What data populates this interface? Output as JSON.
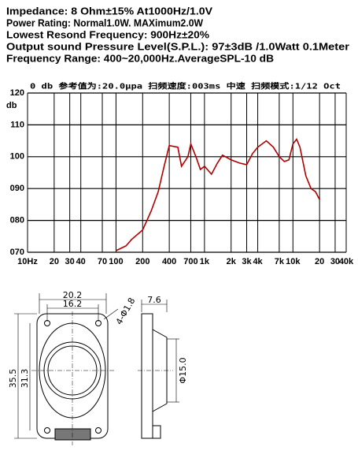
{
  "specs": [
    "Impedance: 8 Ohm±15%  At1000Hz/1.0V",
    "Power Rating: Normal1.0W. MAXimum2.0W",
    "Lowest Resond Frequency: 900Hz±20%",
    "Output sound Pressure Level(S.P.L.): 97±3dB /1.0Watt 0.1Meter",
    "Frequency Range: 400~20,000Hz.AverageSPL-10 dB"
  ],
  "chart_data": {
    "type": "line",
    "title": "0 db  参考值为:20.0μpa  扫频速度:003ms  中速  扫频模式:1/12  Oct",
    "y_label": "db",
    "xscale": "log",
    "grid": true,
    "color": "#b00000",
    "xlim": [
      10,
      40000
    ],
    "ylim": [
      70,
      120
    ],
    "xticks": [
      {
        "value": 10,
        "label": "10Hz"
      },
      20,
      30,
      40,
      70,
      100,
      200,
      400,
      700,
      {
        "value": 1000,
        "label": "1k"
      },
      {
        "value": 2000,
        "label": "2k"
      },
      {
        "value": 3000,
        "label": "3k"
      },
      {
        "value": 4000,
        "label": "4k"
      },
      {
        "value": 7000,
        "label": "7k"
      },
      {
        "value": 10000,
        "label": "10k"
      },
      {
        "value": 20000,
        "label": "20"
      },
      {
        "value": 30000,
        "label": "30"
      },
      {
        "value": 40000,
        "label": "40k"
      }
    ],
    "yticks": [
      120,
      110,
      100,
      {
        "value": 90,
        "label": "090"
      },
      {
        "value": 80,
        "label": "080"
      },
      {
        "value": 70,
        "label": "070"
      }
    ],
    "x": [
      100,
      130,
      150,
      200,
      250,
      300,
      350,
      400,
      500,
      550,
      650,
      700,
      800,
      900,
      1000,
      1200,
      1400,
      1600,
      2000,
      2500,
      3000,
      3500,
      4000,
      5000,
      6000,
      7000,
      8000,
      9000,
      10000,
      11000,
      12000,
      14000,
      16000,
      18000,
      20000
    ],
    "values": [
      70.5,
      72,
      74,
      77,
      83,
      89,
      97,
      103.5,
      103,
      97,
      100,
      104,
      100,
      96,
      97,
      94.5,
      98,
      100.5,
      99,
      98,
      97.5,
      101,
      103,
      105,
      103,
      100,
      98.5,
      99,
      104,
      105.5,
      103,
      94,
      90,
      89,
      86.5
    ]
  },
  "drawing": {
    "dimensions": [
      "20.2",
      "16.2",
      "4-Φ1.8",
      "35.5",
      "31.3",
      "7.6",
      "Φ15.0"
    ]
  }
}
